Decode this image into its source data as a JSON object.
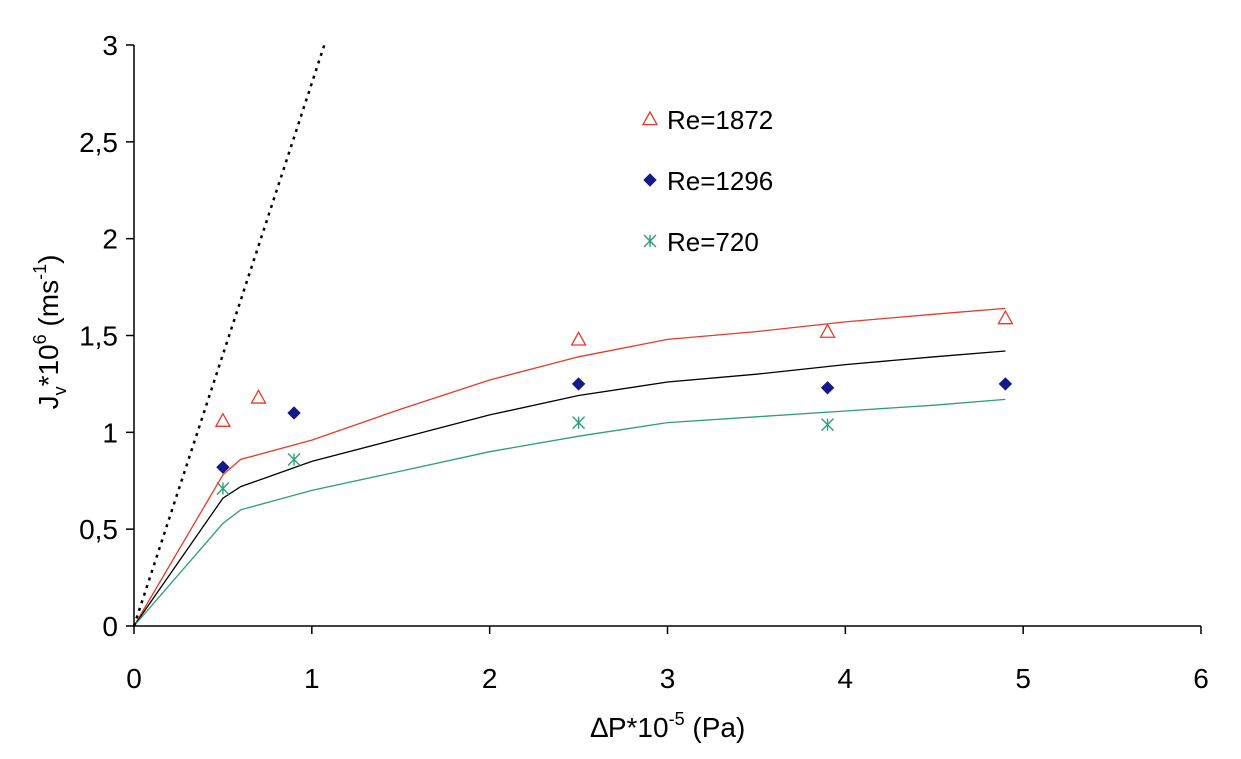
{
  "chart_data": {
    "type": "scatter",
    "xlabel": {
      "main": "∆P*10",
      "sup": "-5",
      "tail": " (Pa)"
    },
    "ylabel": {
      "j": "J",
      "sub": "v",
      "mid": "*10",
      "sup": "6",
      "mid2": " (ms",
      "sup2": "-1",
      "tail": ")"
    },
    "xlim": [
      0,
      6
    ],
    "ylim": [
      0,
      3
    ],
    "x_ticks": [
      "0",
      "1",
      "2",
      "3",
      "4",
      "5",
      "6"
    ],
    "y_ticks": [
      "0",
      "0,5",
      "1",
      "1,5",
      "2",
      "2,5",
      "3"
    ],
    "grid": false,
    "legend_position": "top-right",
    "series": [
      {
        "name": "Re=1872",
        "marker": "triangle-open",
        "color": "#e8392a",
        "x": [
          0.5,
          0.7,
          2.5,
          3.9,
          4.9
        ],
        "y": [
          1.06,
          1.18,
          1.48,
          1.52,
          1.59
        ]
      },
      {
        "name": "Re=1296",
        "marker": "diamond-filled",
        "color": "#141a88",
        "x": [
          0.5,
          0.9,
          2.5,
          3.9,
          4.9
        ],
        "y": [
          0.82,
          1.1,
          1.25,
          1.23,
          1.25
        ]
      },
      {
        "name": "Re=720",
        "marker": "asterisk",
        "color": "#2e9e7a",
        "x": [
          0.5,
          0.9,
          2.5,
          3.9
        ],
        "y": [
          0.71,
          0.86,
          1.05,
          1.04
        ]
      }
    ],
    "curves": [
      {
        "color": "#e8392a",
        "style": "solid",
        "x": [
          0,
          0.5,
          0.6,
          1.0,
          1.5,
          2.0,
          2.5,
          3.0,
          3.5,
          4.0,
          4.5,
          4.9
        ],
        "y": [
          0,
          0.78,
          0.86,
          0.96,
          1.12,
          1.27,
          1.39,
          1.48,
          1.52,
          1.57,
          1.61,
          1.64
        ]
      },
      {
        "color": "#000000",
        "style": "solid",
        "x": [
          0,
          0.5,
          0.6,
          1.0,
          1.5,
          2.0,
          2.5,
          3.0,
          3.5,
          4.0,
          4.5,
          4.9
        ],
        "y": [
          0,
          0.66,
          0.72,
          0.85,
          0.97,
          1.09,
          1.19,
          1.26,
          1.3,
          1.35,
          1.39,
          1.42
        ]
      },
      {
        "color": "#2e9e7a",
        "style": "solid",
        "x": [
          0,
          0.5,
          0.6,
          1.0,
          1.5,
          2.0,
          2.5,
          3.0,
          3.5,
          4.0,
          4.5,
          4.9
        ],
        "y": [
          0,
          0.53,
          0.6,
          0.7,
          0.8,
          0.9,
          0.98,
          1.05,
          1.08,
          1.11,
          1.14,
          1.17
        ]
      },
      {
        "color": "#000000",
        "style": "dotted",
        "x": [
          0,
          1.07
        ],
        "y": [
          0,
          3.0
        ]
      }
    ]
  }
}
